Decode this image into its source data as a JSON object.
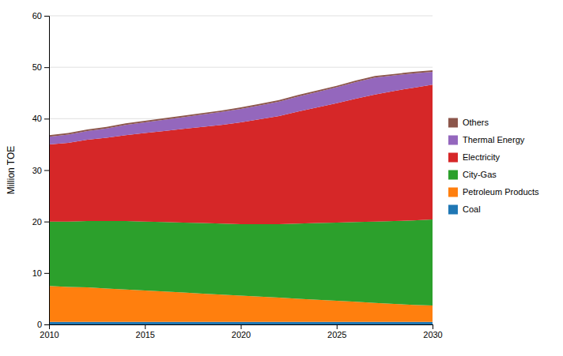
{
  "chart_data": {
    "type": "area",
    "stacked": true,
    "x": [
      2010,
      2011,
      2012,
      2013,
      2014,
      2015,
      2016,
      2017,
      2018,
      2019,
      2020,
      2021,
      2022,
      2023,
      2024,
      2025,
      2026,
      2027,
      2028,
      2029,
      2030
    ],
    "series": [
      {
        "name": "Coal",
        "values": [
          0.5,
          0.5,
          0.5,
          0.5,
          0.5,
          0.5,
          0.5,
          0.5,
          0.5,
          0.5,
          0.5,
          0.5,
          0.5,
          0.5,
          0.5,
          0.5,
          0.5,
          0.5,
          0.5,
          0.5,
          0.5
        ]
      },
      {
        "name": "Petroleum Products",
        "values": [
          7.0,
          6.8,
          6.7,
          6.5,
          6.3,
          6.1,
          5.9,
          5.7,
          5.5,
          5.3,
          5.1,
          4.9,
          4.7,
          4.5,
          4.3,
          4.1,
          3.9,
          3.7,
          3.5,
          3.3,
          3.2
        ]
      },
      {
        "name": "City-Gas",
        "values": [
          12.5,
          12.7,
          12.9,
          13.1,
          13.3,
          13.4,
          13.5,
          13.6,
          13.7,
          13.8,
          13.9,
          14.1,
          14.3,
          14.6,
          14.9,
          15.2,
          15.5,
          15.8,
          16.1,
          16.4,
          16.7
        ]
      },
      {
        "name": "Electricity",
        "values": [
          15.0,
          15.3,
          15.8,
          16.2,
          16.7,
          17.2,
          17.7,
          18.2,
          18.7,
          19.2,
          19.8,
          20.4,
          21.0,
          21.8,
          22.5,
          23.2,
          24.0,
          24.7,
          25.3,
          25.8,
          26.2
        ]
      },
      {
        "name": "Thermal Energy",
        "values": [
          1.5,
          1.6,
          1.7,
          1.8,
          2.0,
          2.1,
          2.2,
          2.3,
          2.4,
          2.5,
          2.6,
          2.7,
          2.8,
          2.9,
          3.0,
          3.1,
          3.2,
          3.3,
          3.0,
          2.8,
          2.5
        ]
      },
      {
        "name": "Others",
        "values": [
          0.3,
          0.3,
          0.3,
          0.3,
          0.3,
          0.3,
          0.3,
          0.3,
          0.3,
          0.3,
          0.3,
          0.3,
          0.3,
          0.3,
          0.3,
          0.3,
          0.3,
          0.3,
          0.3,
          0.3,
          0.3
        ]
      }
    ],
    "ylabel": "Million TOE",
    "xlim": [
      2010,
      2030
    ],
    "ylim": [
      0,
      60
    ],
    "xticks": [
      2010,
      2015,
      2020,
      2025,
      2030
    ],
    "yticks": [
      0,
      10,
      20,
      30,
      40,
      50,
      60
    ],
    "grid": true,
    "legend": "right"
  }
}
